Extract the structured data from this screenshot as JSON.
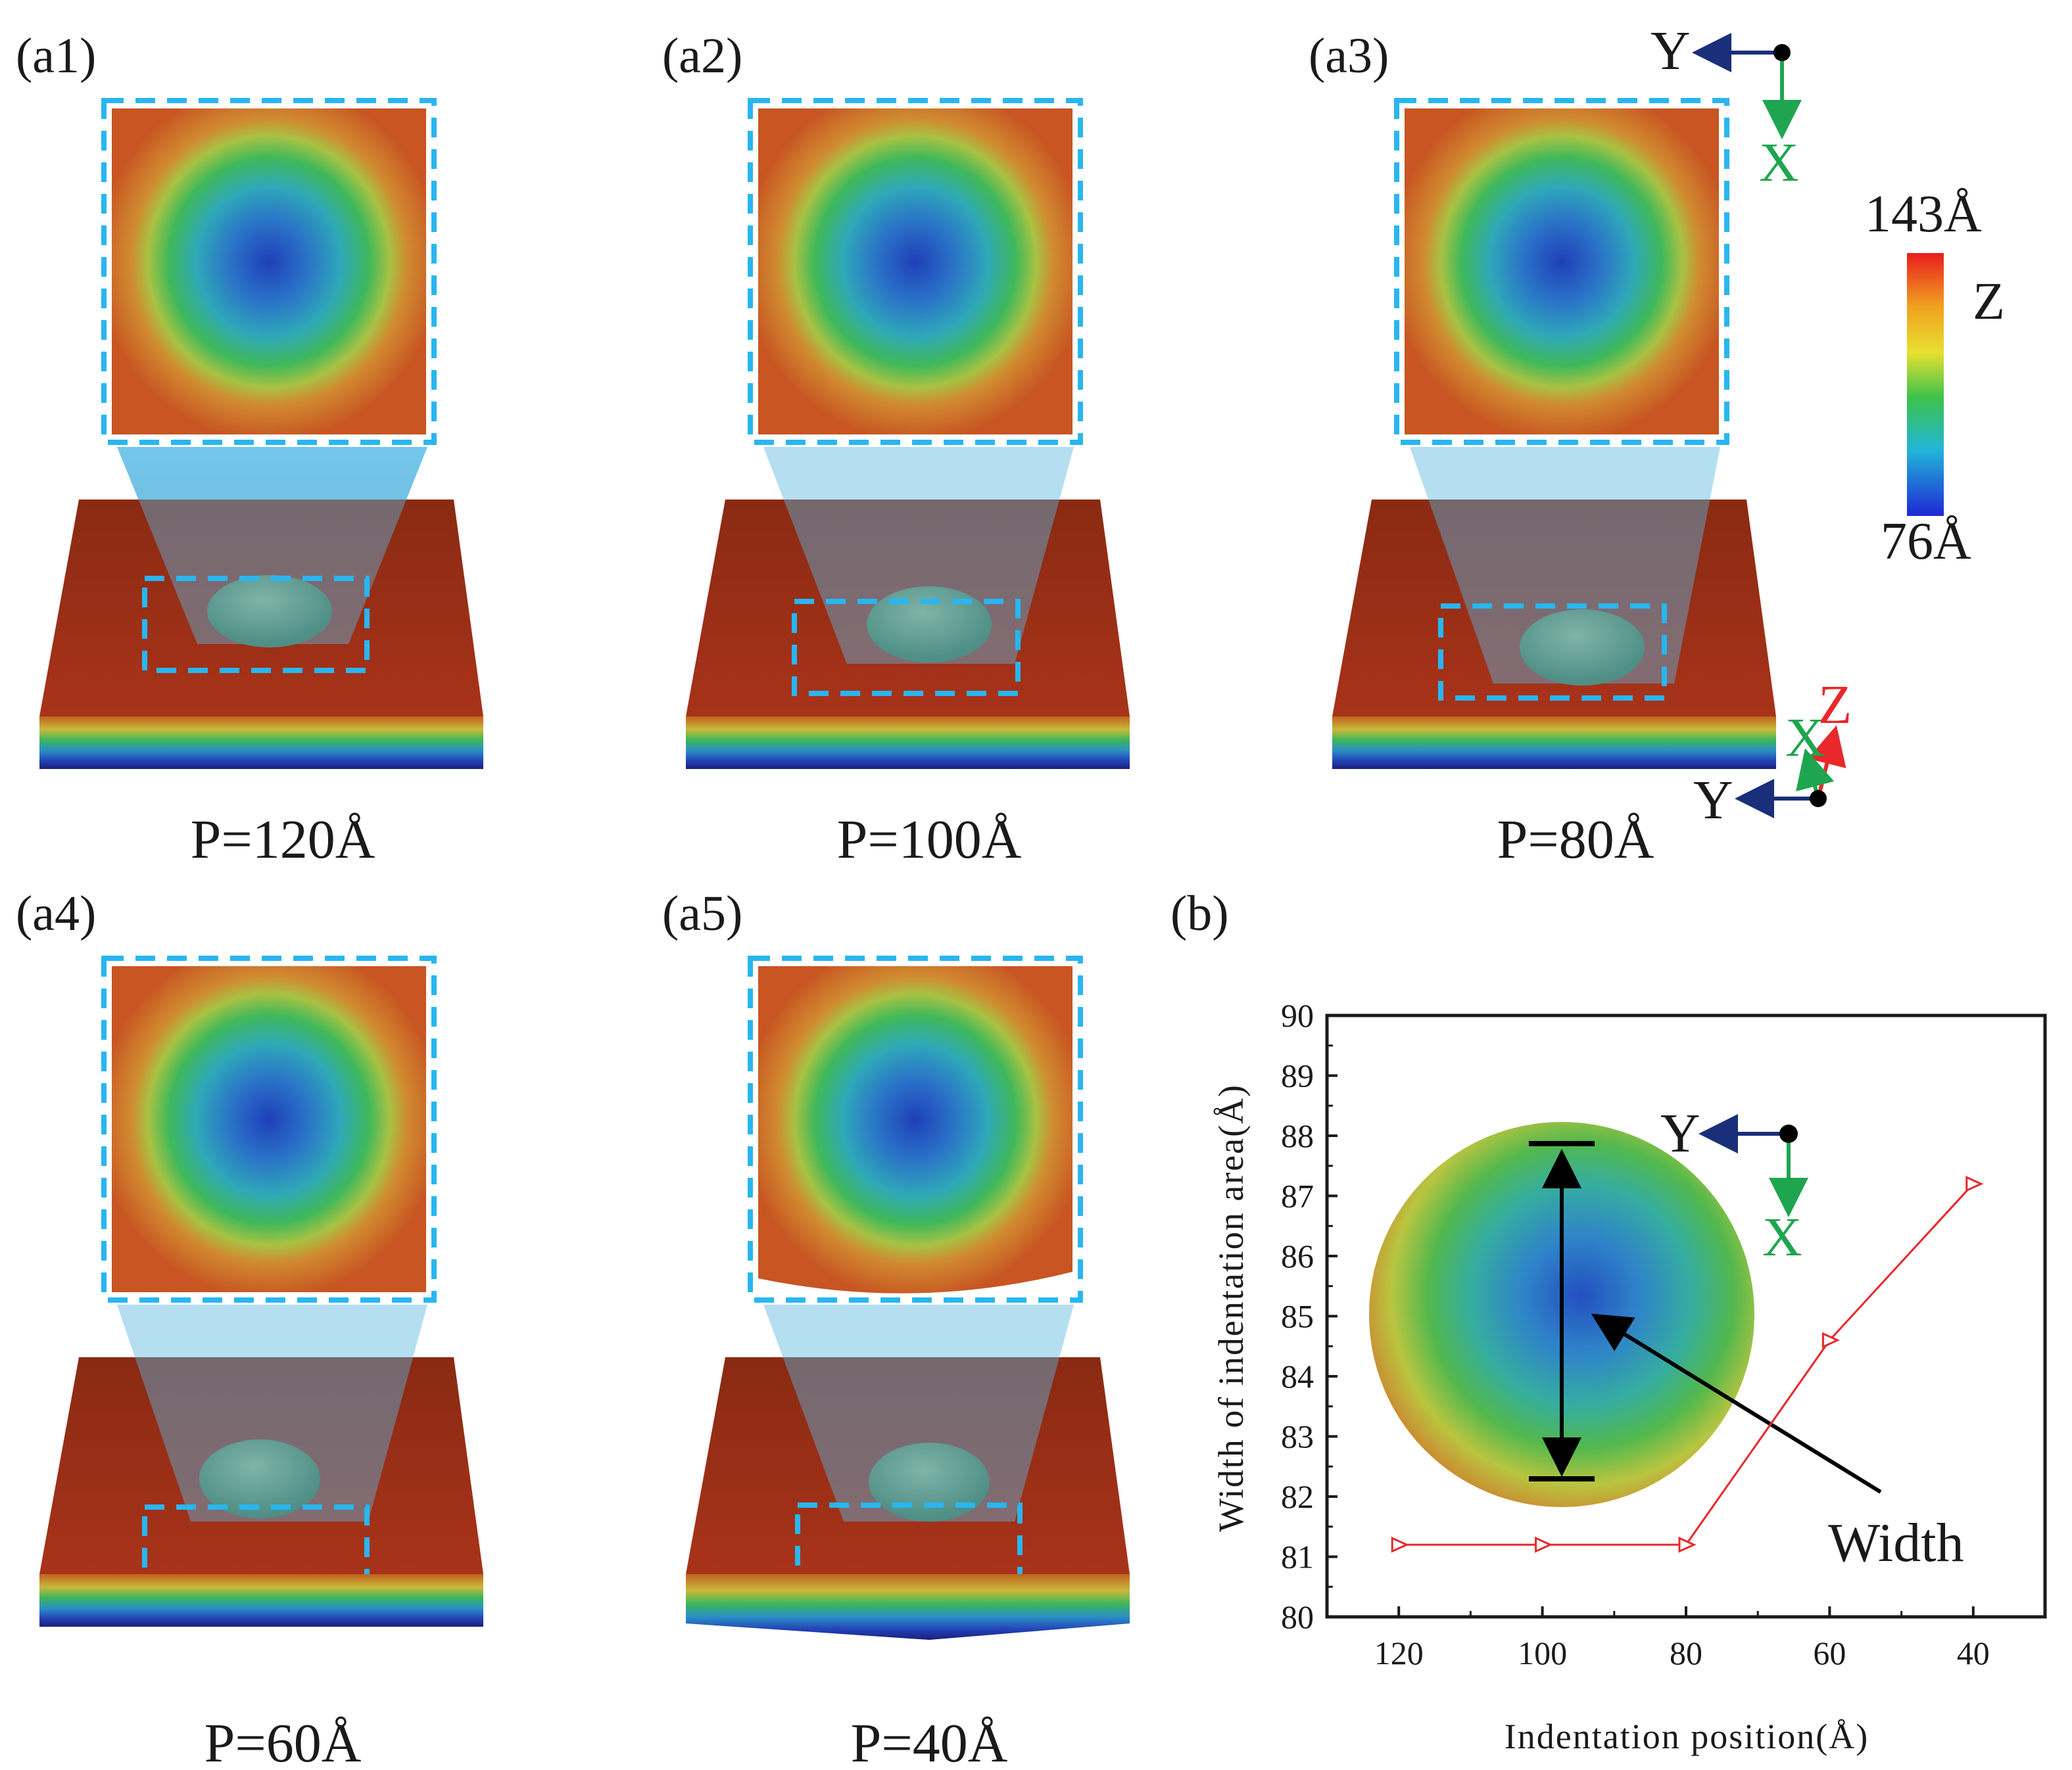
{
  "panels": [
    {
      "label": "(a1)",
      "caption": "P=120Å"
    },
    {
      "label": "(a2)",
      "caption": "P=100Å"
    },
    {
      "label": "(a3)",
      "caption": "P=80Å"
    },
    {
      "label": "(a4)",
      "caption": "P=60Å"
    },
    {
      "label": "(a5)",
      "caption": "P=40Å"
    }
  ],
  "panel_b_label": "(b)",
  "colorbar": {
    "max_label": "143Å",
    "min_label": "76Å",
    "axis_label": "Z"
  },
  "axes_top": {
    "y": "Y",
    "x": "X"
  },
  "axes_3d": {
    "y": "Y",
    "x": "X",
    "z": "Z"
  },
  "axes_inset": {
    "y": "Y",
    "x": "X"
  },
  "inset_annotation": "Width",
  "colors": {
    "series": "#e8282b",
    "frame": "#29b6f0",
    "xaxis": "#1fa54f",
    "yaxis": "#1a2f7a",
    "zaxis": "#e8282b"
  },
  "chart_data": {
    "type": "line",
    "title": "",
    "xlabel": "Indentation position(Å)",
    "ylabel": "Width of indentation area(Å)",
    "x": [
      120,
      100,
      80,
      60,
      40
    ],
    "series": [
      {
        "name": "Width",
        "values": [
          81.2,
          81.2,
          81.2,
          84.6,
          87.2
        ]
      }
    ],
    "xlim": [
      130,
      30
    ],
    "ylim": [
      80,
      90
    ],
    "xticks": [
      "120",
      "100",
      "80",
      "60",
      "40"
    ],
    "yticks": [
      "80",
      "81",
      "82",
      "83",
      "84",
      "85",
      "86",
      "87",
      "88",
      "89",
      "90"
    ],
    "marker": "right-triangle"
  }
}
